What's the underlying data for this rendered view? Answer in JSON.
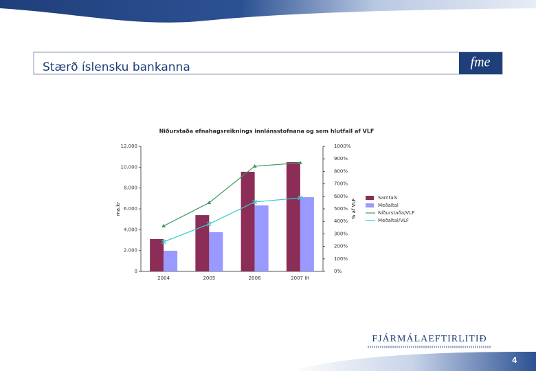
{
  "slide": {
    "title": "Stærð íslensku bankanna",
    "logo": "fme",
    "footer_logo": "FJÁRMÁLAEFTIRLITIÐ",
    "page_number": "4"
  },
  "chart_data": {
    "type": "combo",
    "title": "Niðurstaða efnahagsreiknings innlánsstofnana og sem hlutfall af VLF",
    "y_label": "ma.kr",
    "y2_label": "% af VLF",
    "categories": [
      "2004",
      "2005",
      "2006",
      "2007 IH"
    ],
    "series": [
      {
        "name": "Samtals",
        "type": "bar",
        "color": "#8b2d57",
        "values": [
          3100,
          5400,
          9560,
          10480
        ]
      },
      {
        "name": "Meðaltal",
        "type": "bar",
        "color": "#9999ff",
        "values": [
          1980,
          3760,
          6330,
          7120
        ]
      },
      {
        "name": "Niðurstaða/VLF",
        "type": "line",
        "axis": "y2",
        "color": "#3a9a5e",
        "marker": "triangle",
        "values": [
          363,
          549,
          841,
          868
        ]
      },
      {
        "name": "Meðaltal/VLF",
        "type": "line",
        "axis": "y2",
        "color": "#33cccc",
        "marker": "x",
        "values": [
          236,
          379,
          555,
          588
        ]
      }
    ],
    "ylim": [
      0,
      12000
    ],
    "yticks": [
      0,
      {
        "value": 2000,
        "label": "2.000"
      },
      {
        "value": 4000,
        "label": "4.000"
      },
      {
        "value": 6000,
        "label": "6.000"
      },
      {
        "value": 8000,
        "label": "8.000"
      },
      {
        "value": 10000,
        "label": "10.000"
      },
      {
        "value": 12000,
        "label": "12.000"
      }
    ],
    "y2lim": [
      0,
      1000
    ],
    "y2ticks": [
      {
        "value": 0,
        "label": "0%"
      },
      {
        "value": 100,
        "label": "100%"
      },
      {
        "value": 200,
        "label": "200%"
      },
      {
        "value": 300,
        "label": "300%"
      },
      {
        "value": 400,
        "label": "400%"
      },
      {
        "value": 500,
        "label": "500%"
      },
      {
        "value": 600,
        "label": "600%"
      },
      {
        "value": 700,
        "label": "700%"
      },
      {
        "value": 800,
        "label": "800%"
      },
      {
        "value": 900,
        "label": "900%"
      },
      {
        "value": 1000,
        "label": "1000%"
      }
    ],
    "legend": "right"
  }
}
